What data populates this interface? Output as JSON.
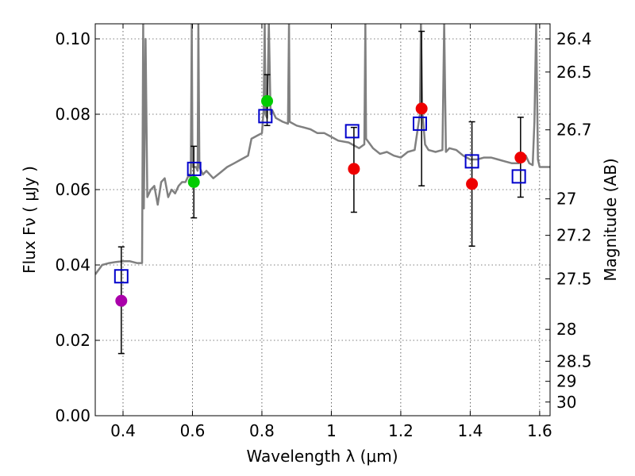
{
  "chart_data": {
    "type": "scatter",
    "xlabel": "Wavelength  λ (μm)",
    "ylabel": "Flux  Fν  ( μJy )",
    "y2label": "Magnitude (AB)",
    "xlim": [
      0.32,
      1.63
    ],
    "ylim": [
      0.0,
      0.104
    ],
    "grid": true,
    "x_ticks": [
      0.4,
      0.6,
      0.8,
      1.0,
      1.2,
      1.4,
      1.6
    ],
    "x_tick_labels": [
      "0.4",
      "0.6",
      "0.8",
      "1",
      "1.2",
      "1.4",
      "1.6"
    ],
    "y_ticks": [
      0.0,
      0.02,
      0.04,
      0.06,
      0.08,
      0.1
    ],
    "y_tick_labels": [
      "0.00",
      "0.02",
      "0.04",
      "0.06",
      "0.08",
      "0.10"
    ],
    "mag_ticks": [
      "26.4",
      "26.5",
      "26.7",
      "27",
      "27.2",
      "27.5",
      "28",
      "28.5",
      "29",
      "30"
    ],
    "colors": {
      "model": "#808080",
      "model_points": "#0000cc",
      "errorbar": "#000000",
      "violet": "#aa00aa",
      "green": "#00cc00",
      "red": "#ee0000"
    },
    "observed": [
      {
        "x": 0.395,
        "y": 0.0305,
        "err_low": 0.0165,
        "err_high": 0.0448,
        "color": "violet"
      },
      {
        "x": 0.604,
        "y": 0.062,
        "err_low": 0.0525,
        "err_high": 0.0715,
        "color": "green"
      },
      {
        "x": 0.815,
        "y": 0.0835,
        "err_low": 0.077,
        "err_high": 0.0905,
        "color": "green"
      },
      {
        "x": 1.065,
        "y": 0.0655,
        "err_low": 0.054,
        "err_high": 0.0765,
        "color": "red"
      },
      {
        "x": 1.26,
        "y": 0.0815,
        "err_low": 0.061,
        "err_high": 0.102,
        "color": "red"
      },
      {
        "x": 1.405,
        "y": 0.0615,
        "err_low": 0.045,
        "err_high": 0.078,
        "color": "red"
      },
      {
        "x": 1.545,
        "y": 0.0685,
        "err_low": 0.058,
        "err_high": 0.0792,
        "color": "red"
      }
    ],
    "model_points": [
      {
        "x": 0.395,
        "y": 0.037
      },
      {
        "x": 0.605,
        "y": 0.0655
      },
      {
        "x": 0.81,
        "y": 0.0795
      },
      {
        "x": 1.06,
        "y": 0.0755
      },
      {
        "x": 1.255,
        "y": 0.0775
      },
      {
        "x": 1.405,
        "y": 0.0675
      },
      {
        "x": 1.54,
        "y": 0.0635
      }
    ],
    "model_spectrum": [
      [
        0.32,
        0.0375
      ],
      [
        0.34,
        0.04
      ],
      [
        0.36,
        0.0405
      ],
      [
        0.38,
        0.0408
      ],
      [
        0.4,
        0.041
      ],
      [
        0.42,
        0.041
      ],
      [
        0.44,
        0.0405
      ],
      [
        0.455,
        0.0405
      ],
      [
        0.458,
        0.104
      ],
      [
        0.46,
        0.055
      ],
      [
        0.465,
        0.1
      ],
      [
        0.47,
        0.058
      ],
      [
        0.48,
        0.06
      ],
      [
        0.49,
        0.061
      ],
      [
        0.5,
        0.056
      ],
      [
        0.51,
        0.062
      ],
      [
        0.52,
        0.063
      ],
      [
        0.53,
        0.058
      ],
      [
        0.54,
        0.06
      ],
      [
        0.55,
        0.059
      ],
      [
        0.56,
        0.061
      ],
      [
        0.57,
        0.062
      ],
      [
        0.58,
        0.062
      ],
      [
        0.59,
        0.064
      ],
      [
        0.595,
        0.063
      ],
      [
        0.598,
        0.104
      ],
      [
        0.6,
        0.066
      ],
      [
        0.61,
        0.066
      ],
      [
        0.615,
        0.065
      ],
      [
        0.617,
        0.104
      ],
      [
        0.62,
        0.066
      ],
      [
        0.63,
        0.064
      ],
      [
        0.64,
        0.065
      ],
      [
        0.66,
        0.063
      ],
      [
        0.68,
        0.0645
      ],
      [
        0.7,
        0.066
      ],
      [
        0.72,
        0.067
      ],
      [
        0.74,
        0.068
      ],
      [
        0.76,
        0.069
      ],
      [
        0.77,
        0.0735
      ],
      [
        0.78,
        0.074
      ],
      [
        0.79,
        0.0745
      ],
      [
        0.8,
        0.075
      ],
      [
        0.805,
        0.081
      ],
      [
        0.808,
        0.104
      ],
      [
        0.81,
        0.08
      ],
      [
        0.815,
        0.079
      ],
      [
        0.82,
        0.104
      ],
      [
        0.825,
        0.08
      ],
      [
        0.83,
        0.081
      ],
      [
        0.84,
        0.079
      ],
      [
        0.86,
        0.078
      ],
      [
        0.875,
        0.0775
      ],
      [
        0.878,
        0.104
      ],
      [
        0.88,
        0.078
      ],
      [
        0.9,
        0.077
      ],
      [
        0.92,
        0.0765
      ],
      [
        0.94,
        0.076
      ],
      [
        0.96,
        0.075
      ],
      [
        0.98,
        0.075
      ],
      [
        1.0,
        0.074
      ],
      [
        1.02,
        0.073
      ],
      [
        1.05,
        0.0725
      ],
      [
        1.08,
        0.071
      ],
      [
        1.095,
        0.072
      ],
      [
        1.098,
        0.104
      ],
      [
        1.1,
        0.0735
      ],
      [
        1.12,
        0.071
      ],
      [
        1.14,
        0.0695
      ],
      [
        1.16,
        0.07
      ],
      [
        1.18,
        0.069
      ],
      [
        1.2,
        0.0685
      ],
      [
        1.22,
        0.07
      ],
      [
        1.24,
        0.0705
      ],
      [
        1.255,
        0.08
      ],
      [
        1.258,
        0.104
      ],
      [
        1.262,
        0.081
      ],
      [
        1.27,
        0.072
      ],
      [
        1.28,
        0.0705
      ],
      [
        1.3,
        0.07
      ],
      [
        1.32,
        0.0705
      ],
      [
        1.325,
        0.104
      ],
      [
        1.33,
        0.07
      ],
      [
        1.34,
        0.071
      ],
      [
        1.36,
        0.0705
      ],
      [
        1.38,
        0.069
      ],
      [
        1.4,
        0.068
      ],
      [
        1.42,
        0.068
      ],
      [
        1.44,
        0.0685
      ],
      [
        1.46,
        0.0685
      ],
      [
        1.48,
        0.068
      ],
      [
        1.5,
        0.0675
      ],
      [
        1.52,
        0.067
      ],
      [
        1.54,
        0.067
      ],
      [
        1.55,
        0.068
      ],
      [
        1.56,
        0.069
      ],
      [
        1.57,
        0.067
      ],
      [
        1.58,
        0.0665
      ],
      [
        1.585,
        0.078
      ],
      [
        1.59,
        0.104
      ],
      [
        1.595,
        0.068
      ],
      [
        1.6,
        0.066
      ],
      [
        1.63,
        0.066
      ]
    ]
  }
}
